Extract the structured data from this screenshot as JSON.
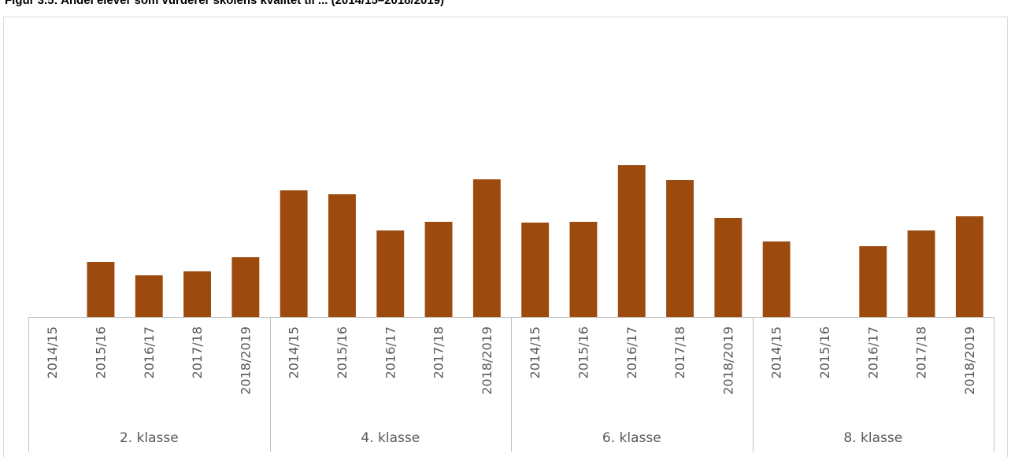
{
  "chart_data": {
    "type": "bar",
    "title": "Figur 3.5: Andel elever som vurderer skolens kvalitet til ... (2014/15–2018/2019)",
    "xlabel": "",
    "ylabel": "",
    "groups": [
      "2. klasse",
      "4. klasse",
      "6. klasse",
      "8. klasse"
    ],
    "categories": [
      "2014/15",
      "2015/16",
      "2016/17",
      "2017/18",
      "2018/2019"
    ],
    "series": [
      {
        "values": [
          0,
          70,
          53,
          58,
          76
        ]
      },
      {
        "values": [
          161,
          156,
          110,
          121,
          175
        ]
      },
      {
        "values": [
          120,
          121,
          193,
          174,
          126
        ]
      },
      {
        "values": [
          96,
          0,
          90,
          110,
          128
        ]
      }
    ],
    "ylim": [
      0,
      400
    ],
    "grid": false,
    "legend": "none",
    "bar_color": "#9C4A0D",
    "axis_color": "#BFBFBF",
    "label_color": "#595959"
  }
}
